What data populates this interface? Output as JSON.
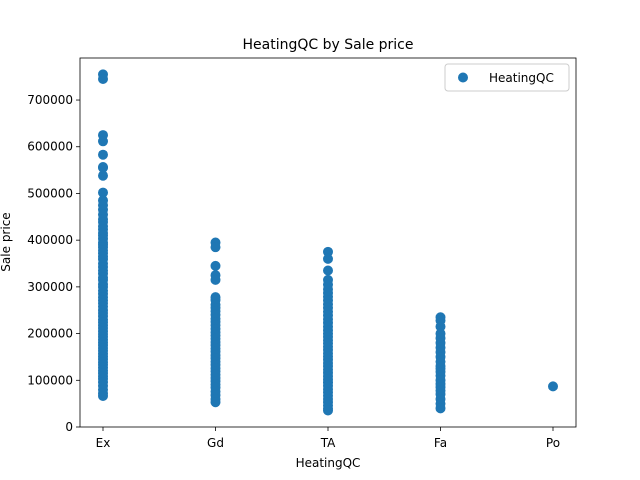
{
  "chart_data": {
    "type": "scatter",
    "title": "HeatingQC by Sale price",
    "xlabel": "HeatingQC",
    "ylabel": "Sale price",
    "categories": [
      "Ex",
      "Gd",
      "TA",
      "Fa",
      "Po"
    ],
    "ylim": [
      0,
      790000
    ],
    "yticks": [
      0,
      100000,
      200000,
      300000,
      400000,
      500000,
      600000,
      700000
    ],
    "ytick_labels": [
      "0",
      "100000",
      "200000",
      "300000",
      "400000",
      "500000",
      "600000",
      "700000"
    ],
    "legend": {
      "position": "top-right",
      "label": "HeatingQC"
    },
    "grid": false,
    "color": "#1f77b4",
    "series": [
      {
        "name": "HeatingQC",
        "points": [
          {
            "x": "Ex",
            "y": 755000
          },
          {
            "x": "Ex",
            "y": 745000
          },
          {
            "x": "Ex",
            "y": 625000
          },
          {
            "x": "Ex",
            "y": 611657
          },
          {
            "x": "Ex",
            "y": 582933
          },
          {
            "x": "Ex",
            "y": 556581
          },
          {
            "x": "Ex",
            "y": 555000
          },
          {
            "x": "Ex",
            "y": 538000
          },
          {
            "x": "Ex",
            "y": 501837
          },
          {
            "x": "Ex",
            "y": 485000
          },
          {
            "x": "Ex",
            "y": 475000
          },
          {
            "x": "Ex",
            "y": 465000
          },
          {
            "x": "Ex",
            "y": 455000
          },
          {
            "x": "Ex",
            "y": 445000
          },
          {
            "x": "Ex",
            "y": 438780
          },
          {
            "x": "Ex",
            "y": 430000
          },
          {
            "x": "Ex",
            "y": 423000
          },
          {
            "x": "Ex",
            "y": 415298
          },
          {
            "x": "Ex",
            "y": 410000
          },
          {
            "x": "Ex",
            "y": 402861
          },
          {
            "x": "Ex",
            "y": 395000
          },
          {
            "x": "Ex",
            "y": 390000
          },
          {
            "x": "Ex",
            "y": 385000
          },
          {
            "x": "Ex",
            "y": 378500
          },
          {
            "x": "Ex",
            "y": 372500
          },
          {
            "x": "Ex",
            "y": 365000
          },
          {
            "x": "Ex",
            "y": 359100
          },
          {
            "x": "Ex",
            "y": 350000
          },
          {
            "x": "Ex",
            "y": 342643
          },
          {
            "x": "Ex",
            "y": 335000
          },
          {
            "x": "Ex",
            "y": 328000
          },
          {
            "x": "Ex",
            "y": 320000
          },
          {
            "x": "Ex",
            "y": 314813
          },
          {
            "x": "Ex",
            "y": 306000
          },
          {
            "x": "Ex",
            "y": 299800
          },
          {
            "x": "Ex",
            "y": 292000
          },
          {
            "x": "Ex",
            "y": 285000
          },
          {
            "x": "Ex",
            "y": 278000
          },
          {
            "x": "Ex",
            "y": 271000
          },
          {
            "x": "Ex",
            "y": 265000
          },
          {
            "x": "Ex",
            "y": 258000
          },
          {
            "x": "Ex",
            "y": 250000
          },
          {
            "x": "Ex",
            "y": 244000
          },
          {
            "x": "Ex",
            "y": 237000
          },
          {
            "x": "Ex",
            "y": 230000
          },
          {
            "x": "Ex",
            "y": 224000
          },
          {
            "x": "Ex",
            "y": 218000
          },
          {
            "x": "Ex",
            "y": 212000
          },
          {
            "x": "Ex",
            "y": 205000
          },
          {
            "x": "Ex",
            "y": 199000
          },
          {
            "x": "Ex",
            "y": 193000
          },
          {
            "x": "Ex",
            "y": 187000
          },
          {
            "x": "Ex",
            "y": 181000
          },
          {
            "x": "Ex",
            "y": 175000
          },
          {
            "x": "Ex",
            "y": 169000
          },
          {
            "x": "Ex",
            "y": 163000
          },
          {
            "x": "Ex",
            "y": 157000
          },
          {
            "x": "Ex",
            "y": 151000
          },
          {
            "x": "Ex",
            "y": 145000
          },
          {
            "x": "Ex",
            "y": 139000
          },
          {
            "x": "Ex",
            "y": 133000
          },
          {
            "x": "Ex",
            "y": 127000
          },
          {
            "x": "Ex",
            "y": 121000
          },
          {
            "x": "Ex",
            "y": 115000
          },
          {
            "x": "Ex",
            "y": 109000
          },
          {
            "x": "Ex",
            "y": 103000
          },
          {
            "x": "Ex",
            "y": 96000
          },
          {
            "x": "Ex",
            "y": 88000
          },
          {
            "x": "Ex",
            "y": 80000
          },
          {
            "x": "Ex",
            "y": 72000
          },
          {
            "x": "Ex",
            "y": 66500
          },
          {
            "x": "Gd",
            "y": 395000
          },
          {
            "x": "Gd",
            "y": 385000
          },
          {
            "x": "Gd",
            "y": 345000
          },
          {
            "x": "Gd",
            "y": 325000
          },
          {
            "x": "Gd",
            "y": 315000
          },
          {
            "x": "Gd",
            "y": 278000
          },
          {
            "x": "Gd",
            "y": 272000
          },
          {
            "x": "Gd",
            "y": 262000
          },
          {
            "x": "Gd",
            "y": 255000
          },
          {
            "x": "Gd",
            "y": 248000
          },
          {
            "x": "Gd",
            "y": 240000
          },
          {
            "x": "Gd",
            "y": 232000
          },
          {
            "x": "Gd",
            "y": 225000
          },
          {
            "x": "Gd",
            "y": 218000
          },
          {
            "x": "Gd",
            "y": 210000
          },
          {
            "x": "Gd",
            "y": 203000
          },
          {
            "x": "Gd",
            "y": 196000
          },
          {
            "x": "Gd",
            "y": 189000
          },
          {
            "x": "Gd",
            "y": 182000
          },
          {
            "x": "Gd",
            "y": 175000
          },
          {
            "x": "Gd",
            "y": 168000
          },
          {
            "x": "Gd",
            "y": 161000
          },
          {
            "x": "Gd",
            "y": 154000
          },
          {
            "x": "Gd",
            "y": 147000
          },
          {
            "x": "Gd",
            "y": 140000
          },
          {
            "x": "Gd",
            "y": 133000
          },
          {
            "x": "Gd",
            "y": 126000
          },
          {
            "x": "Gd",
            "y": 119000
          },
          {
            "x": "Gd",
            "y": 112000
          },
          {
            "x": "Gd",
            "y": 105000
          },
          {
            "x": "Gd",
            "y": 98000
          },
          {
            "x": "Gd",
            "y": 91000
          },
          {
            "x": "Gd",
            "y": 84000
          },
          {
            "x": "Gd",
            "y": 76000
          },
          {
            "x": "Gd",
            "y": 68000
          },
          {
            "x": "Gd",
            "y": 60000
          },
          {
            "x": "Gd",
            "y": 53000
          },
          {
            "x": "TA",
            "y": 375000
          },
          {
            "x": "TA",
            "y": 360000
          },
          {
            "x": "TA",
            "y": 335000
          },
          {
            "x": "TA",
            "y": 315000
          },
          {
            "x": "TA",
            "y": 305000
          },
          {
            "x": "TA",
            "y": 295000
          },
          {
            "x": "TA",
            "y": 287000
          },
          {
            "x": "TA",
            "y": 279000
          },
          {
            "x": "TA",
            "y": 271000
          },
          {
            "x": "TA",
            "y": 263000
          },
          {
            "x": "TA",
            "y": 255000
          },
          {
            "x": "TA",
            "y": 247000
          },
          {
            "x": "TA",
            "y": 239000
          },
          {
            "x": "TA",
            "y": 231000
          },
          {
            "x": "TA",
            "y": 223000
          },
          {
            "x": "TA",
            "y": 215000
          },
          {
            "x": "TA",
            "y": 207000
          },
          {
            "x": "TA",
            "y": 200000
          },
          {
            "x": "TA",
            "y": 193000
          },
          {
            "x": "TA",
            "y": 186000
          },
          {
            "x": "TA",
            "y": 179000
          },
          {
            "x": "TA",
            "y": 172000
          },
          {
            "x": "TA",
            "y": 165000
          },
          {
            "x": "TA",
            "y": 158000
          },
          {
            "x": "TA",
            "y": 151000
          },
          {
            "x": "TA",
            "y": 144000
          },
          {
            "x": "TA",
            "y": 137000
          },
          {
            "x": "TA",
            "y": 130000
          },
          {
            "x": "TA",
            "y": 123000
          },
          {
            "x": "TA",
            "y": 116000
          },
          {
            "x": "TA",
            "y": 109000
          },
          {
            "x": "TA",
            "y": 102000
          },
          {
            "x": "TA",
            "y": 95000
          },
          {
            "x": "TA",
            "y": 88000
          },
          {
            "x": "TA",
            "y": 81000
          },
          {
            "x": "TA",
            "y": 74000
          },
          {
            "x": "TA",
            "y": 67000
          },
          {
            "x": "TA",
            "y": 60000
          },
          {
            "x": "TA",
            "y": 53000
          },
          {
            "x": "TA",
            "y": 46000
          },
          {
            "x": "TA",
            "y": 39300
          },
          {
            "x": "TA",
            "y": 35311
          },
          {
            "x": "Fa",
            "y": 235000
          },
          {
            "x": "Fa",
            "y": 228000
          },
          {
            "x": "Fa",
            "y": 215000
          },
          {
            "x": "Fa",
            "y": 200000
          },
          {
            "x": "Fa",
            "y": 190000
          },
          {
            "x": "Fa",
            "y": 180000
          },
          {
            "x": "Fa",
            "y": 170000
          },
          {
            "x": "Fa",
            "y": 160000
          },
          {
            "x": "Fa",
            "y": 150000
          },
          {
            "x": "Fa",
            "y": 140000
          },
          {
            "x": "Fa",
            "y": 130000
          },
          {
            "x": "Fa",
            "y": 125000
          },
          {
            "x": "Fa",
            "y": 118000
          },
          {
            "x": "Fa",
            "y": 110000
          },
          {
            "x": "Fa",
            "y": 100000
          },
          {
            "x": "Fa",
            "y": 92000
          },
          {
            "x": "Fa",
            "y": 85000
          },
          {
            "x": "Fa",
            "y": 78000
          },
          {
            "x": "Fa",
            "y": 70000
          },
          {
            "x": "Fa",
            "y": 60000
          },
          {
            "x": "Fa",
            "y": 50000
          },
          {
            "x": "Fa",
            "y": 40000
          },
          {
            "x": "Po",
            "y": 87000
          }
        ]
      }
    ]
  }
}
